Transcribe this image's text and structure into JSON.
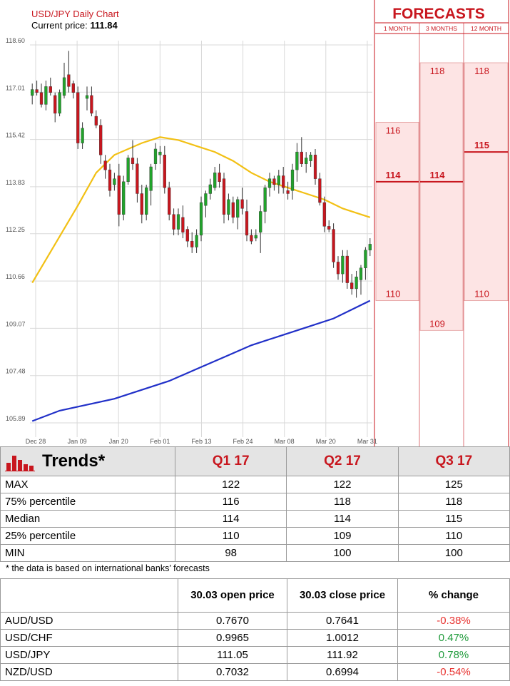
{
  "chart_data": {
    "type": "candlestick",
    "title": "USD/JPY Daily Chart",
    "current_price_label": "Current price:",
    "current_price": "111.84",
    "y_ticks": [
      118.6,
      117.01,
      115.42,
      113.83,
      112.25,
      110.66,
      109.07,
      107.48,
      105.89
    ],
    "ylim": [
      105.89,
      118.6
    ],
    "x_ticks": [
      "Dec 28",
      "Jan 09",
      "Jan 20",
      "Feb 01",
      "Feb 13",
      "Feb 24",
      "Mar 08",
      "Mar 20",
      "Mar 31"
    ],
    "candles": [
      [
        116.9,
        117.3,
        116.6,
        117.1
      ],
      [
        117.1,
        117.4,
        116.9,
        117.0
      ],
      [
        117.0,
        117.3,
        116.5,
        116.6
      ],
      [
        116.6,
        117.4,
        116.4,
        117.2
      ],
      [
        117.2,
        117.5,
        116.9,
        117.0
      ],
      [
        116.9,
        117.0,
        116.0,
        116.3
      ],
      [
        116.3,
        117.1,
        116.2,
        117.0
      ],
      [
        116.9,
        118.0,
        116.8,
        117.5
      ],
      [
        117.6,
        118.4,
        117.0,
        117.2
      ],
      [
        117.3,
        117.4,
        116.8,
        117.0
      ],
      [
        117.0,
        117.2,
        115.1,
        115.3
      ],
      [
        115.3,
        116.0,
        115.1,
        115.8
      ],
      [
        116.8,
        117.2,
        116.4,
        116.9
      ],
      [
        116.9,
        117.2,
        116.2,
        116.3
      ],
      [
        116.2,
        116.4,
        115.8,
        115.9
      ],
      [
        115.9,
        116.1,
        114.6,
        114.9
      ],
      [
        114.7,
        114.9,
        114.1,
        114.4
      ],
      [
        114.4,
        114.6,
        113.5,
        113.7
      ],
      [
        113.9,
        114.3,
        113.7,
        114.1
      ],
      [
        114.2,
        114.6,
        112.5,
        112.9
      ],
      [
        112.9,
        114.2,
        112.7,
        114.0
      ],
      [
        114.0,
        114.9,
        113.9,
        114.8
      ],
      [
        114.8,
        115.4,
        114.4,
        114.6
      ],
      [
        114.6,
        114.8,
        113.3,
        113.6
      ],
      [
        113.6,
        113.9,
        112.6,
        112.9
      ],
      [
        112.9,
        113.9,
        112.7,
        113.8
      ],
      [
        113.7,
        114.6,
        113.2,
        114.5
      ],
      [
        114.6,
        115.3,
        114.4,
        115.1
      ],
      [
        114.9,
        115.2,
        114.6,
        115.0
      ],
      [
        114.9,
        115.2,
        113.6,
        113.8
      ],
      [
        113.8,
        114.0,
        112.7,
        112.9
      ],
      [
        112.9,
        113.1,
        112.2,
        112.4
      ],
      [
        112.4,
        113.1,
        112.2,
        112.9
      ],
      [
        112.8,
        113.2,
        112.1,
        112.3
      ],
      [
        112.4,
        112.5,
        111.8,
        112.0
      ],
      [
        112.0,
        112.3,
        111.6,
        111.8
      ],
      [
        111.8,
        112.4,
        111.6,
        112.2
      ],
      [
        112.2,
        113.5,
        112.0,
        113.3
      ],
      [
        113.2,
        113.7,
        112.8,
        113.6
      ],
      [
        113.6,
        114.1,
        113.4,
        113.9
      ],
      [
        113.8,
        114.5,
        113.7,
        114.3
      ],
      [
        114.3,
        114.6,
        113.8,
        114.0
      ],
      [
        114.1,
        114.3,
        112.6,
        112.9
      ],
      [
        112.9,
        113.6,
        112.7,
        113.4
      ],
      [
        113.3,
        113.5,
        112.6,
        112.8
      ],
      [
        112.8,
        113.5,
        112.4,
        113.4
      ],
      [
        113.4,
        113.8,
        112.9,
        113.1
      ],
      [
        113.0,
        113.4,
        112.0,
        112.2
      ],
      [
        112.2,
        112.4,
        111.9,
        112.0
      ],
      [
        112.1,
        112.4,
        112.0,
        112.2
      ],
      [
        112.3,
        113.2,
        111.6,
        113.0
      ],
      [
        113.0,
        113.9,
        112.6,
        113.8
      ],
      [
        113.8,
        114.3,
        113.5,
        114.1
      ],
      [
        114.1,
        114.2,
        113.7,
        113.9
      ],
      [
        113.9,
        114.4,
        113.6,
        114.2
      ],
      [
        114.2,
        114.5,
        113.6,
        113.8
      ],
      [
        113.7,
        114.0,
        113.4,
        113.6
      ],
      [
        113.7,
        114.6,
        113.4,
        114.4
      ],
      [
        114.4,
        115.3,
        114.0,
        115.0
      ],
      [
        115.0,
        115.5,
        114.5,
        114.6
      ],
      [
        114.6,
        115.0,
        114.3,
        114.8
      ],
      [
        114.7,
        115.0,
        114.5,
        114.9
      ],
      [
        114.9,
        115.1,
        113.9,
        114.1
      ],
      [
        114.1,
        114.3,
        113.2,
        113.3
      ],
      [
        113.3,
        113.5,
        112.3,
        112.5
      ],
      [
        112.5,
        112.7,
        112.3,
        112.4
      ],
      [
        112.4,
        112.6,
        111.1,
        111.3
      ],
      [
        111.3,
        111.5,
        110.7,
        110.9
      ],
      [
        110.9,
        111.7,
        110.6,
        111.5
      ],
      [
        111.5,
        111.7,
        110.4,
        110.6
      ],
      [
        110.6,
        110.9,
        110.2,
        110.4
      ],
      [
        110.4,
        111.0,
        110.1,
        110.8
      ],
      [
        110.7,
        111.2,
        110.2,
        111.1
      ],
      [
        111.1,
        111.8,
        110.7,
        111.7
      ],
      [
        111.7,
        112.1,
        111.5,
        111.9
      ]
    ],
    "ma_yellow": [
      [
        0,
        110.6
      ],
      [
        5,
        111.9
      ],
      [
        10,
        113.2
      ],
      [
        14,
        114.3
      ],
      [
        18,
        114.9
      ],
      [
        24,
        115.3
      ],
      [
        28,
        115.5
      ],
      [
        32,
        115.4
      ],
      [
        36,
        115.2
      ],
      [
        40,
        115.0
      ],
      [
        44,
        114.7
      ],
      [
        48,
        114.3
      ],
      [
        52,
        114.0
      ],
      [
        56,
        113.8
      ],
      [
        60,
        113.6
      ],
      [
        64,
        113.4
      ],
      [
        68,
        113.1
      ],
      [
        72,
        112.9
      ],
      [
        74,
        112.8
      ]
    ],
    "ma_blue": [
      [
        0,
        105.95
      ],
      [
        6,
        106.3
      ],
      [
        12,
        106.5
      ],
      [
        18,
        106.7
      ],
      [
        24,
        107.0
      ],
      [
        30,
        107.3
      ],
      [
        36,
        107.7
      ],
      [
        42,
        108.1
      ],
      [
        48,
        108.5
      ],
      [
        54,
        108.8
      ],
      [
        60,
        109.1
      ],
      [
        66,
        109.4
      ],
      [
        70,
        109.7
      ],
      [
        74,
        110.0
      ]
    ]
  },
  "forecasts": {
    "title": "FORECASTS",
    "columns": [
      "1 MONTH",
      "3 MONTHS",
      "12 MONTH"
    ],
    "ranges": [
      {
        "high": 116,
        "median": 114,
        "low": 110,
        "high_label": "116",
        "median_label": "114",
        "low_label": "110"
      },
      {
        "high": 118,
        "median": 114,
        "low": 109,
        "high_label": "118",
        "median_label": "114",
        "low_label": "109"
      },
      {
        "high": 118,
        "median": 115,
        "low": 110,
        "high_label": "118",
        "median_label": "115",
        "low_label": "110"
      }
    ]
  },
  "trends": {
    "title": "Trends*",
    "columns": [
      "Q1 17",
      "Q2 17",
      "Q3 17"
    ],
    "rows": [
      {
        "label": "MAX",
        "values": [
          "122",
          "122",
          "125"
        ]
      },
      {
        "label": "75% percentile",
        "values": [
          "116",
          "118",
          "118"
        ]
      },
      {
        "label": "Median",
        "values": [
          "114",
          "114",
          "115"
        ]
      },
      {
        "label": "25% percentile",
        "values": [
          "110",
          "109",
          "110"
        ]
      },
      {
        "label": "MIN",
        "values": [
          "98",
          "100",
          "100"
        ]
      }
    ],
    "footnote": "* the data is based on international banks’ forecasts"
  },
  "prices": {
    "headers": [
      "",
      "30.03 open price",
      "30.03 close price",
      "% change"
    ],
    "rows": [
      {
        "pair": "AUD/USD",
        "open": "0.7670",
        "close": "0.7641",
        "change": "-0.38%",
        "dir": "neg"
      },
      {
        "pair": "USD/CHF",
        "open": "0.9965",
        "close": "1.0012",
        "change": "0.47%",
        "dir": "pos"
      },
      {
        "pair": "USD/JPY",
        "open": "111.05",
        "close": "111.92",
        "change": "0.78%",
        "dir": "pos"
      },
      {
        "pair": "NZD/USD",
        "open": "0.7032",
        "close": "0.6994",
        "change": "-0.54%",
        "dir": "neg"
      }
    ]
  },
  "colors": {
    "up": "#21a32b",
    "down": "#c8161e",
    "ma_yellow": "#f2c014",
    "ma_blue": "#2130c8",
    "forecast_fill": "#fde4e4",
    "forecast_line": "#c8161e"
  }
}
